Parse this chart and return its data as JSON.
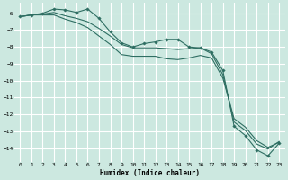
{
  "xlabel": "Humidex (Indice chaleur)",
  "background_color": "#cce8e0",
  "line_color": "#2e6e62",
  "grid_color": "#ffffff",
  "xlim": [
    -0.5,
    23.5
  ],
  "ylim": [
    -14.8,
    -5.4
  ],
  "yticks": [
    -6,
    -7,
    -8,
    -9,
    -10,
    -11,
    -12,
    -13,
    -14
  ],
  "xticks": [
    0,
    1,
    2,
    3,
    4,
    5,
    6,
    7,
    8,
    9,
    10,
    11,
    12,
    13,
    14,
    15,
    16,
    17,
    18,
    19,
    20,
    21,
    22,
    23
  ],
  "line1_x": [
    0,
    1,
    2,
    3,
    4,
    5,
    6,
    7,
    8,
    9,
    10,
    11,
    12,
    13,
    14,
    15,
    16,
    17,
    18,
    19,
    20,
    21,
    22,
    23
  ],
  "line1_y": [
    -6.2,
    -6.1,
    -6.0,
    -5.75,
    -5.8,
    -5.95,
    -5.75,
    -6.3,
    -7.1,
    -7.75,
    -8.0,
    -7.8,
    -7.7,
    -7.55,
    -7.55,
    -8.0,
    -8.05,
    -8.3,
    -9.4,
    -12.7,
    -13.25,
    -14.1,
    -14.45,
    -13.7
  ],
  "line2_x": [
    0,
    1,
    2,
    3,
    4,
    5,
    6,
    7,
    8,
    9,
    10,
    11,
    12,
    13,
    14,
    15,
    16,
    17,
    18,
    19,
    20,
    21,
    22,
    23
  ],
  "line2_y": [
    -6.2,
    -6.1,
    -6.05,
    -5.95,
    -6.15,
    -6.3,
    -6.5,
    -6.9,
    -7.35,
    -7.85,
    -8.05,
    -8.05,
    -8.05,
    -8.1,
    -8.15,
    -8.1,
    -8.05,
    -8.4,
    -9.65,
    -12.45,
    -12.95,
    -13.75,
    -14.05,
    -13.6
  ],
  "line3_x": [
    0,
    1,
    2,
    3,
    4,
    5,
    6,
    7,
    8,
    9,
    10,
    11,
    12,
    13,
    14,
    15,
    16,
    17,
    18,
    19,
    20,
    21,
    22,
    23
  ],
  "line3_y": [
    -6.2,
    -6.1,
    -6.1,
    -6.1,
    -6.35,
    -6.55,
    -6.85,
    -7.35,
    -7.85,
    -8.45,
    -8.55,
    -8.55,
    -8.55,
    -8.7,
    -8.75,
    -8.65,
    -8.5,
    -8.65,
    -9.85,
    -12.25,
    -12.75,
    -13.55,
    -13.95,
    -13.65
  ]
}
